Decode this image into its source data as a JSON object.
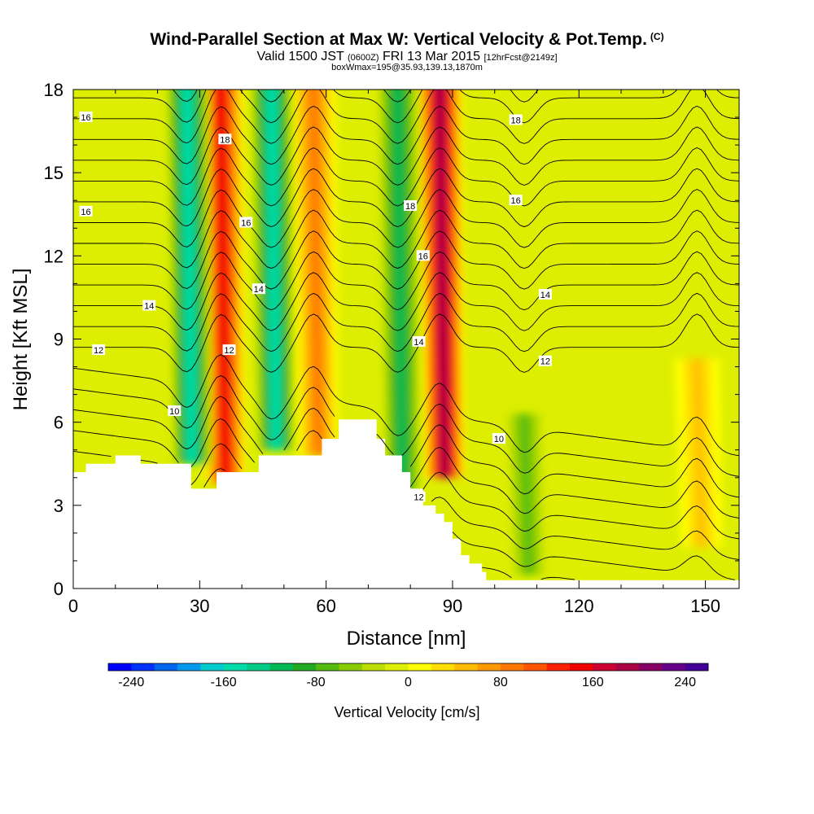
{
  "header": {
    "title": "Wind-Parallel Section at Max W: Vertical Velocity & Pot.Temp.",
    "copyright": "(C)",
    "valid_prefix": "Valid 1500 JST",
    "valid_utc": "(0600Z)",
    "valid_date": "FRI 13 Mar 2015",
    "forecast": "[12hrFcst@2149z]",
    "box_info": "boxWmax=195@35.93,139.13,1870m"
  },
  "chart_data": {
    "type": "heatmap",
    "xlabel": "Distance [nm]",
    "ylabel": "Height [Kft MSL]",
    "xlim": [
      0,
      158
    ],
    "ylim": [
      0,
      18
    ],
    "x_ticks": [
      0,
      30,
      60,
      90,
      120,
      150
    ],
    "y_ticks": [
      0,
      3,
      6,
      9,
      12,
      15,
      18
    ],
    "field": "Vertical Velocity",
    "colorbar": {
      "label": "Vertical Velocity [cm/s]",
      "min": -260,
      "max": 260,
      "step": 20,
      "tick_values": [
        -240,
        -160,
        -80,
        0,
        80,
        160,
        240
      ],
      "tick_labels": [
        "-240",
        "-160",
        "-80",
        "0",
        "80",
        "160",
        "240"
      ],
      "colors": [
        "#0000ff",
        "#0033ff",
        "#0066ee",
        "#0099ee",
        "#00cccc",
        "#00ddaa",
        "#00cc88",
        "#00bb55",
        "#22aa22",
        "#55bb11",
        "#88cc00",
        "#bbdd00",
        "#ddee00",
        "#ffff00",
        "#ffdd00",
        "#ffbb00",
        "#ff9900",
        "#ff7700",
        "#ff5500",
        "#ff2200",
        "#ee0000",
        "#cc0033",
        "#aa0044",
        "#880066",
        "#660088",
        "#440099"
      ]
    },
    "updraft_cores": [
      {
        "x": 35,
        "ztop": 18,
        "zbot": 3.8,
        "w": 150
      },
      {
        "x": 57,
        "ztop": 18,
        "zbot": 4.8,
        "w": 90
      },
      {
        "x": 87,
        "ztop": 18,
        "zbot": 4.0,
        "w": 195
      },
      {
        "x": 148,
        "ztop": 8,
        "zbot": 1.5,
        "w": 55
      }
    ],
    "downdraft_cores": [
      {
        "x": 27,
        "ztop": 18,
        "zbot": 4.5,
        "w": -150
      },
      {
        "x": 47,
        "ztop": 18,
        "zbot": 5.0,
        "w": -160
      },
      {
        "x": 77,
        "ztop": 18,
        "zbot": 3.5,
        "w": -110
      },
      {
        "x": 107,
        "ztop": 6,
        "zbot": 0.5,
        "w": -85
      }
    ],
    "terrain_kft": [
      [
        0,
        4.2
      ],
      [
        3,
        4.5
      ],
      [
        10,
        4.8
      ],
      [
        16,
        4.5
      ],
      [
        27,
        4.5
      ],
      [
        28,
        3.6
      ],
      [
        34,
        4.2
      ],
      [
        44,
        4.8
      ],
      [
        55,
        4.8
      ],
      [
        59,
        5.4
      ],
      [
        63,
        6.1
      ],
      [
        70,
        6.1
      ],
      [
        72,
        5.4
      ],
      [
        74,
        4.8
      ],
      [
        78,
        4.2
      ],
      [
        80,
        3.6
      ],
      [
        83,
        3.0
      ],
      [
        86,
        2.7
      ],
      [
        88,
        2.4
      ],
      [
        90,
        1.8
      ],
      [
        92,
        1.2
      ],
      [
        94,
        0.9
      ],
      [
        97,
        0.6
      ],
      [
        98,
        0.3
      ],
      [
        158,
        0.3
      ]
    ],
    "theta_contour_labels": [
      {
        "text": "16",
        "x": 3,
        "z": 17.0
      },
      {
        "text": "16",
        "x": 3,
        "z": 13.6
      },
      {
        "text": "14",
        "x": 18,
        "z": 10.2
      },
      {
        "text": "12",
        "x": 6,
        "z": 8.6
      },
      {
        "text": "10",
        "x": 24,
        "z": 6.4
      },
      {
        "text": "18",
        "x": 36,
        "z": 16.2
      },
      {
        "text": "16",
        "x": 41,
        "z": 13.2
      },
      {
        "text": "14",
        "x": 44,
        "z": 10.8
      },
      {
        "text": "12",
        "x": 37,
        "z": 8.6
      },
      {
        "text": "18",
        "x": 80,
        "z": 13.8
      },
      {
        "text": "16",
        "x": 83,
        "z": 12.0
      },
      {
        "text": "14",
        "x": 82,
        "z": 8.9
      },
      {
        "text": "12",
        "x": 82,
        "z": 3.3
      },
      {
        "text": "18",
        "x": 105,
        "z": 16.9
      },
      {
        "text": "16",
        "x": 105,
        "z": 14.0
      },
      {
        "text": "14",
        "x": 112,
        "z": 10.6
      },
      {
        "text": "12",
        "x": 112,
        "z": 8.2
      },
      {
        "text": "10",
        "x": 101,
        "z": 5.4
      }
    ]
  }
}
